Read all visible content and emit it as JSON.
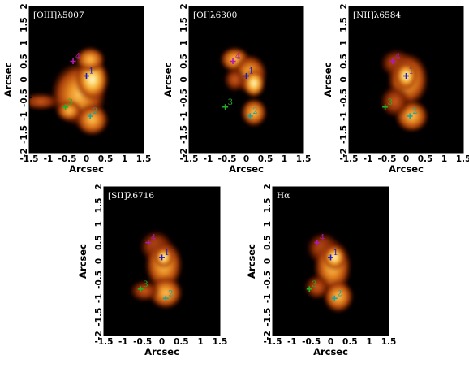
{
  "figure": {
    "axis_label_x": "Arcsec",
    "axis_label_y": "Arcsec",
    "x_ticks": [
      "-1.5",
      "-1",
      "-0.5",
      "0",
      "0.5",
      "1",
      "1.5"
    ],
    "y_ticks": [
      "2",
      "1.5",
      "1",
      "0.5",
      "0",
      "-0.5",
      "-1",
      "-1.5",
      "-2"
    ],
    "marker_colors": {
      "1": "#1a1acc",
      "2": "#17a6a0",
      "3": "#22b022",
      "4": "#b01ab0"
    }
  },
  "chart_data": [
    {
      "type": "heatmap",
      "title": "[OIII]λ5007",
      "xlabel": "Arcsec",
      "ylabel": "Arcsec",
      "xlim": [
        -1.5,
        1.5
      ],
      "ylim": [
        -2,
        2
      ],
      "markers": [
        {
          "label": "1",
          "x": 0.0,
          "y": 0.1
        },
        {
          "label": "2",
          "x": 0.1,
          "y": -1.0
        },
        {
          "label": "3",
          "x": -0.55,
          "y": -0.75
        },
        {
          "label": "4",
          "x": -0.35,
          "y": 0.5
        }
      ]
    },
    {
      "type": "heatmap",
      "title": "[OI]λ6300",
      "xlabel": "Arcsec",
      "ylabel": "Arcsec",
      "xlim": [
        -1.5,
        1.5
      ],
      "ylim": [
        -2,
        2
      ],
      "markers": [
        {
          "label": "1",
          "x": 0.0,
          "y": 0.1
        },
        {
          "label": "2",
          "x": 0.1,
          "y": -1.0
        },
        {
          "label": "3",
          "x": -0.55,
          "y": -0.75
        },
        {
          "label": "4",
          "x": -0.35,
          "y": 0.5
        }
      ]
    },
    {
      "type": "heatmap",
      "title": "[NII]λ6584",
      "xlabel": "Arcsec",
      "ylabel": "Arcsec",
      "xlim": [
        -1.5,
        1.5
      ],
      "ylim": [
        -2,
        2
      ],
      "markers": [
        {
          "label": "1",
          "x": 0.0,
          "y": 0.1
        },
        {
          "label": "2",
          "x": 0.1,
          "y": -1.0
        },
        {
          "label": "3",
          "x": -0.55,
          "y": -0.75
        },
        {
          "label": "4",
          "x": -0.35,
          "y": 0.5
        }
      ]
    },
    {
      "type": "heatmap",
      "title": "[SII]λ6716",
      "xlabel": "Arcsec",
      "ylabel": "Arcsec",
      "xlim": [
        -1.5,
        1.5
      ],
      "ylim": [
        -2,
        2
      ],
      "markers": [
        {
          "label": "1",
          "x": 0.0,
          "y": 0.1
        },
        {
          "label": "2",
          "x": 0.1,
          "y": -1.0
        },
        {
          "label": "3",
          "x": -0.55,
          "y": -0.75
        },
        {
          "label": "4",
          "x": -0.35,
          "y": 0.5
        }
      ]
    },
    {
      "type": "heatmap",
      "title": "Hα",
      "xlabel": "Arcsec",
      "ylabel": "Arcsec",
      "xlim": [
        -1.5,
        1.5
      ],
      "ylim": [
        -2,
        2
      ],
      "markers": [
        {
          "label": "1",
          "x": 0.0,
          "y": 0.1
        },
        {
          "label": "2",
          "x": 0.1,
          "y": -1.0
        },
        {
          "label": "3",
          "x": -0.55,
          "y": -0.75
        },
        {
          "label": "4",
          "x": -0.35,
          "y": 0.5
        }
      ]
    }
  ]
}
